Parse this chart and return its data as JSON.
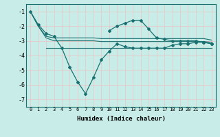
{
  "xlabel": "Humidex (Indice chaleur)",
  "bg_color": "#c8ede8",
  "grid_color": "#e8c8c8",
  "line_color": "#1a7070",
  "xlim": [
    -0.5,
    23.5
  ],
  "ylim": [
    -7.5,
    -0.5
  ],
  "yticks": [
    -7,
    -6,
    -5,
    -4,
    -3,
    -2,
    -1
  ],
  "xticks": [
    0,
    1,
    2,
    3,
    4,
    5,
    6,
    7,
    8,
    9,
    10,
    11,
    12,
    13,
    14,
    15,
    16,
    17,
    18,
    19,
    20,
    21,
    22,
    23
  ],
  "line1_x": [
    0,
    1,
    2,
    3,
    4,
    5,
    6,
    7,
    8,
    9,
    10,
    11,
    12,
    13,
    14,
    15,
    16,
    17,
    18,
    19,
    20,
    21,
    22,
    23
  ],
  "line1_y": [
    -1.0,
    -1.9,
    -2.5,
    -2.7,
    -3.5,
    -4.8,
    -5.8,
    -6.6,
    -5.5,
    -4.3,
    -3.7,
    -3.2,
    -3.4,
    -3.5,
    -3.5,
    -3.5,
    -3.5,
    -3.5,
    -3.3,
    -3.2,
    -3.2,
    -3.1,
    -3.1,
    -3.2
  ],
  "line2_x": [
    0,
    1,
    2,
    3,
    4,
    5,
    6,
    7,
    8,
    9,
    10,
    11,
    12,
    13,
    14,
    15,
    16,
    17,
    18,
    19,
    20,
    21,
    22,
    23
  ],
  "line2_y": [
    -1.0,
    -2.0,
    -2.7,
    -2.8,
    -2.8,
    -2.8,
    -2.8,
    -2.8,
    -2.8,
    -2.85,
    -2.85,
    -2.85,
    -2.85,
    -2.85,
    -2.85,
    -2.85,
    -2.85,
    -2.85,
    -2.85,
    -2.85,
    -2.85,
    -2.85,
    -2.85,
    -2.95
  ],
  "line3_x": [
    0,
    1,
    2,
    3,
    4,
    5,
    6,
    7,
    8,
    9,
    10,
    11,
    12,
    13,
    14,
    15,
    16,
    17,
    18,
    19,
    20,
    21,
    22,
    23
  ],
  "line3_y": [
    -1.0,
    -2.0,
    -2.8,
    -3.0,
    -3.0,
    -3.0,
    -3.0,
    -3.0,
    -3.0,
    -3.05,
    -3.05,
    -3.05,
    -3.05,
    -3.05,
    -3.05,
    -3.05,
    -3.05,
    -3.05,
    -3.05,
    -3.05,
    -3.05,
    -3.05,
    -3.05,
    -3.1
  ],
  "line4_x": [
    2,
    3,
    4,
    5,
    6,
    7,
    8,
    9,
    10,
    11,
    12,
    13,
    14,
    15,
    16,
    17,
    18,
    19,
    20,
    21,
    22,
    23
  ],
  "line4_y": [
    -3.5,
    -3.5,
    -3.5,
    -3.5,
    -3.5,
    -3.5,
    -3.5,
    -3.5,
    -3.5,
    -3.5,
    -3.5,
    -3.5,
    -3.5,
    -3.5,
    -3.5,
    -3.5,
    -3.5,
    -3.5,
    -3.5,
    -3.5,
    -3.5,
    -3.5
  ],
  "line5_x": [
    10,
    11,
    12,
    13,
    14,
    15,
    16,
    17,
    18,
    19,
    20,
    21,
    22,
    23
  ],
  "line5_y": [
    -2.3,
    -2.0,
    -1.8,
    -1.6,
    -1.6,
    -2.2,
    -2.8,
    -2.9,
    -3.0,
    -3.0,
    -3.0,
    -3.0,
    -3.1,
    -3.2
  ]
}
